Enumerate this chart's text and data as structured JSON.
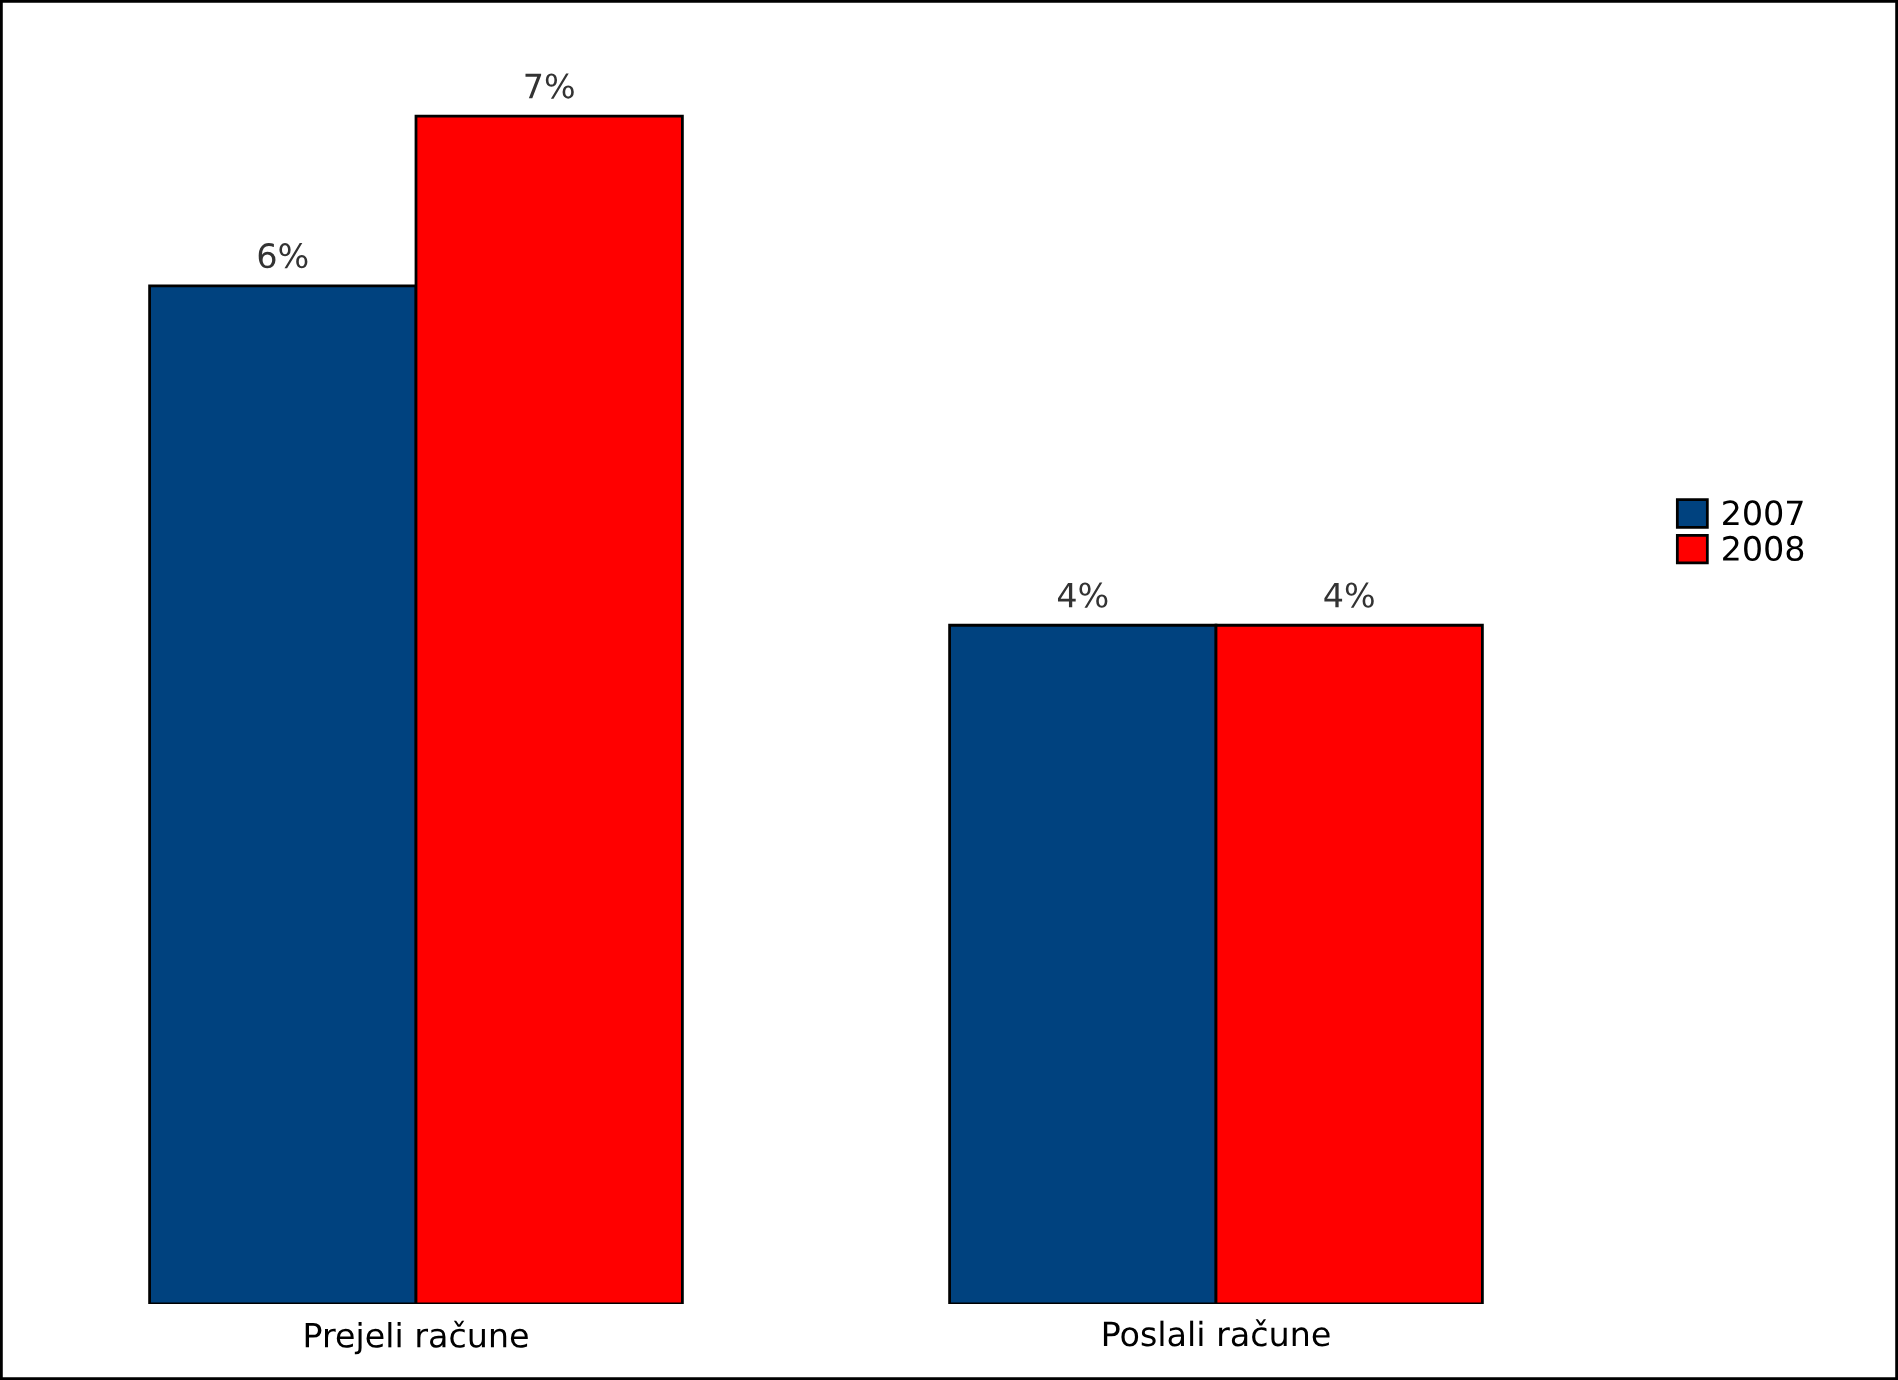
{
  "chart_data": {
    "type": "bar",
    "tick_labels": "x",
    "categories": [
      "Prejeli račune",
      "Poslali račune"
    ],
    "series": [
      {
        "name": "2007",
        "color": "#00427f",
        "values": [
          6,
          4
        ],
        "value_labels": [
          "6%",
          "4%"
        ]
      },
      {
        "name": "2008",
        "color": "#ff0000",
        "values": [
          7,
          4
        ],
        "value_labels": [
          "7%",
          "4%"
        ]
      }
    ],
    "legend": "right",
    "grid": false
  }
}
